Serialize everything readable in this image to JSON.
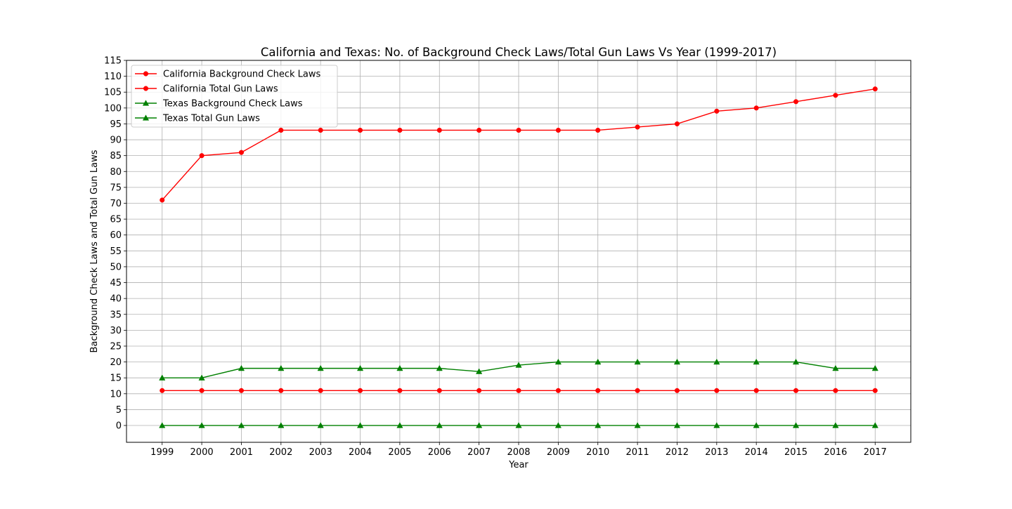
{
  "chart_data": {
    "type": "line",
    "title": "California and Texas: No. of Background Check Laws/Total Gun Laws Vs Year (1999-2017)",
    "xlabel": "Year",
    "ylabel": "Background Check Laws and Total Gun Laws",
    "x": [
      1999,
      2000,
      2001,
      2002,
      2003,
      2004,
      2005,
      2006,
      2007,
      2008,
      2009,
      2010,
      2011,
      2012,
      2013,
      2014,
      2015,
      2016,
      2017
    ],
    "xlim": [
      1998.1,
      2017.9
    ],
    "ylim": [
      -5.3,
      115
    ],
    "yticks": [
      0,
      5,
      10,
      15,
      20,
      25,
      30,
      35,
      40,
      45,
      50,
      55,
      60,
      65,
      70,
      75,
      80,
      85,
      90,
      95,
      100,
      105,
      110,
      115
    ],
    "grid": true,
    "legend_position": "top-left",
    "series": [
      {
        "name": "California Background Check Laws",
        "color": "#ff0000",
        "marker": "circle",
        "values": [
          71,
          85,
          86,
          93,
          93,
          93,
          93,
          93,
          93,
          93,
          93,
          93,
          94,
          95,
          99,
          100,
          102,
          104,
          106
        ]
      },
      {
        "name": "California Total Gun Laws",
        "color": "#ff0000",
        "marker": "circle",
        "values": [
          11,
          11,
          11,
          11,
          11,
          11,
          11,
          11,
          11,
          11,
          11,
          11,
          11,
          11,
          11,
          11,
          11,
          11,
          11
        ]
      },
      {
        "name": "Texas Background Check Laws",
        "color": "#008000",
        "marker": "triangle",
        "values": [
          15,
          15,
          18,
          18,
          18,
          18,
          18,
          18,
          17,
          19,
          20,
          20,
          20,
          20,
          20,
          20,
          20,
          18,
          18
        ]
      },
      {
        "name": "Texas Total Gun Laws",
        "color": "#008000",
        "marker": "triangle",
        "values": [
          0,
          0,
          0,
          0,
          0,
          0,
          0,
          0,
          0,
          0,
          0,
          0,
          0,
          0,
          0,
          0,
          0,
          0,
          0
        ]
      }
    ]
  }
}
